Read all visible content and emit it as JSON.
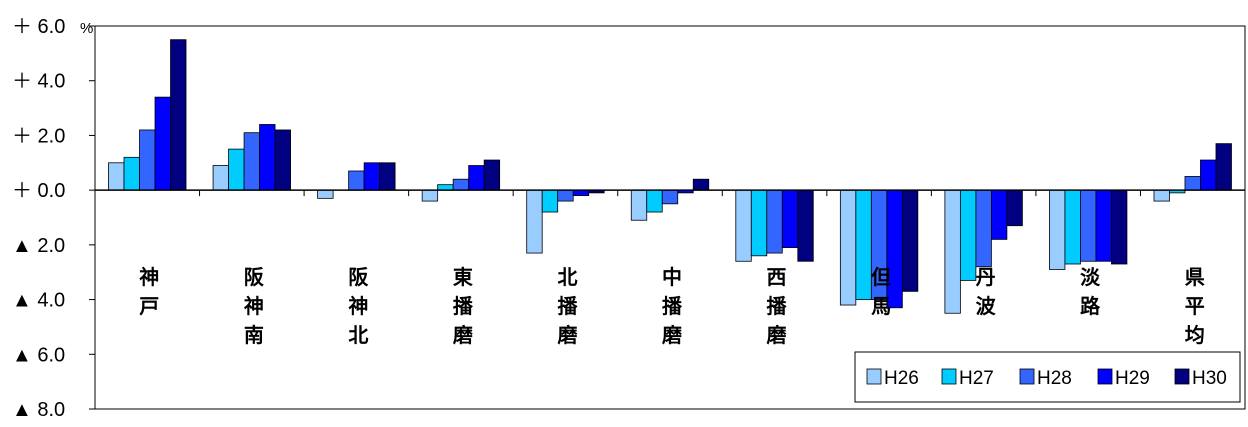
{
  "chart_data": {
    "type": "bar",
    "title": "",
    "xlabel": "",
    "ylabel": "",
    "unit": "%",
    "ylim": [
      -8.0,
      6.0
    ],
    "y_ticks": [
      {
        "value": 6.0,
        "label": "＋ 6.0"
      },
      {
        "value": 4.0,
        "label": "＋ 4.0"
      },
      {
        "value": 2.0,
        "label": "＋ 2.0"
      },
      {
        "value": 0.0,
        "label": "＋ 0.0"
      },
      {
        "value": -2.0,
        "label": "▲ 2.0"
      },
      {
        "value": -4.0,
        "label": "▲ 4.0"
      },
      {
        "value": -6.0,
        "label": "▲ 6.0"
      },
      {
        "value": -8.0,
        "label": "▲ 8.0"
      }
    ],
    "categories": [
      "神戸",
      "阪神南",
      "阪神北",
      "東播磨",
      "北播磨",
      "中播磨",
      "西播磨",
      "但馬",
      "丹波",
      "淡路",
      "県平均"
    ],
    "series": [
      {
        "name": "H26",
        "color": "#99CCFF",
        "values": [
          1.0,
          0.9,
          -0.3,
          -0.4,
          -2.3,
          -1.1,
          -2.6,
          -4.2,
          -4.5,
          -2.9,
          -0.4
        ]
      },
      {
        "name": "H27",
        "color": "#00CCFF",
        "values": [
          1.2,
          1.5,
          0.0,
          0.2,
          -0.8,
          -0.8,
          -2.4,
          -4.0,
          -3.3,
          -2.7,
          -0.1
        ]
      },
      {
        "name": "H28",
        "color": "#3366FF",
        "values": [
          2.2,
          2.1,
          0.7,
          0.4,
          -0.4,
          -0.5,
          -2.3,
          -4.0,
          -2.8,
          -2.6,
          0.5
        ]
      },
      {
        "name": "H29",
        "color": "#0000FF",
        "values": [
          3.4,
          2.4,
          1.0,
          0.9,
          -0.2,
          -0.1,
          -2.1,
          -4.3,
          -1.8,
          -2.6,
          1.1
        ]
      },
      {
        "name": "H30",
        "color": "#000080",
        "values": [
          5.5,
          2.2,
          1.0,
          1.1,
          -0.1,
          0.4,
          -2.6,
          -3.7,
          -1.3,
          -2.7,
          1.7
        ]
      }
    ],
    "grid": false,
    "legend_position": "bottom-right"
  }
}
